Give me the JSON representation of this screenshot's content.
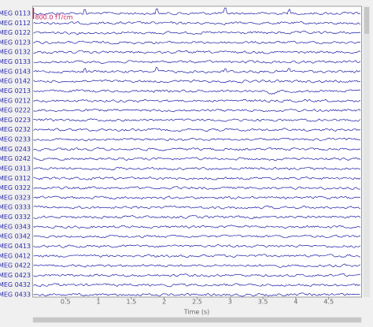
{
  "chart_data": {
    "type": "traces",
    "categories": [
      "MEG 0113",
      "MEG 0112",
      "MEG 0122",
      "MEG 0123",
      "MEG 0132",
      "MEG 0133",
      "MEG 0143",
      "MEG 0142",
      "MEG 0213",
      "MEG 0212",
      "MEG 0222",
      "MEG 0223",
      "MEG 0232",
      "MEG 0233",
      "MEG 0243",
      "MEG 0242",
      "MEG 0313",
      "MEG 0312",
      "MEG 0322",
      "MEG 0323",
      "MEG 0333",
      "MEG 0332",
      "MEG 0343",
      "MEG 0342",
      "MEG 0413",
      "MEG 0412",
      "MEG 0422",
      "MEG 0423",
      "MEG 0432",
      "MEG 0433"
    ],
    "xlim": [
      0,
      5
    ],
    "xticks": [
      0.5,
      1,
      1.5,
      2,
      2.5,
      3,
      3.5,
      4,
      4.5
    ],
    "x_label": "Time (s)",
    "scale_label": "800.0 fT/cm",
    "color": "#1a1aa6",
    "label_color": "#2a2ab0",
    "scale_color": "#c8185a"
  }
}
